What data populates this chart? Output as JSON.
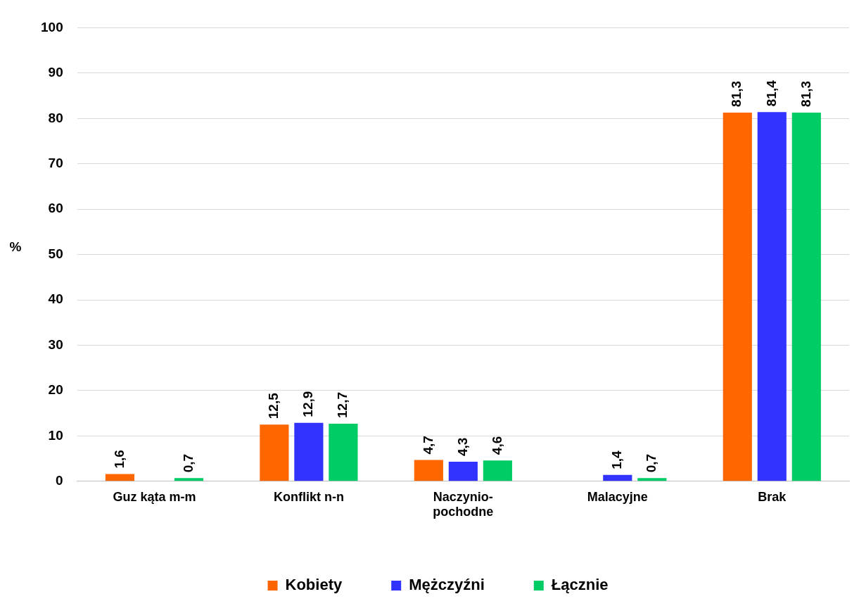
{
  "chart_data": {
    "type": "bar",
    "ylabel": "%",
    "categories": [
      "Guz kąta m-m",
      "Konflikt n-n",
      "Naczynio-\npochodne",
      "Malacyjne",
      "Brak"
    ],
    "series": [
      {
        "name": "Kobiety",
        "color": "#ff6600",
        "values": [
          1.6,
          12.5,
          4.7,
          null,
          81.3
        ],
        "value_labels": [
          "1,6",
          "12,5",
          "4,7",
          null,
          "81,3"
        ]
      },
      {
        "name": "Mężczyźni",
        "color": "#3333ff",
        "values": [
          null,
          12.9,
          4.3,
          1.4,
          81.4
        ],
        "value_labels": [
          null,
          "12,9",
          "4,3",
          "1,4",
          "81,4"
        ]
      },
      {
        "name": "Łącznie",
        "color": "#00cc66",
        "values": [
          0.7,
          12.7,
          4.6,
          0.7,
          81.3
        ],
        "value_labels": [
          "0,7",
          "12,7",
          "4,6",
          "0,7",
          "81,3"
        ]
      }
    ],
    "ylim": [
      0,
      100
    ],
    "yticks": [
      0,
      10,
      20,
      30,
      40,
      50,
      60,
      70,
      80,
      90,
      100
    ],
    "grid": "y",
    "legend": "bottom"
  }
}
